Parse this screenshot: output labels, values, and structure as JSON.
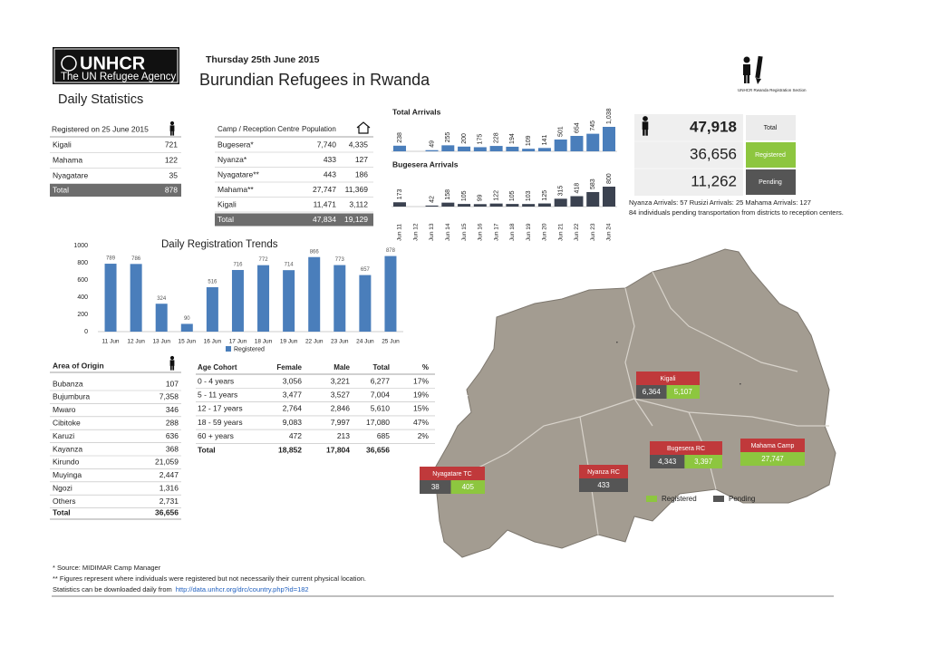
{
  "header": {
    "logo": "UNHCR",
    "logo_sub": "The UN Refugee Agency",
    "date": "Thursday 25th June 2015",
    "title": "Burundian Refugees in Rwanda",
    "subtitle": "Daily Statistics",
    "icon_label": "UNHCR Rwanda Registration Section"
  },
  "registered_table": {
    "title": "Registered on 25 June 2015",
    "rows": [
      [
        "Kigali",
        "721"
      ],
      [
        "Mahama",
        "122"
      ],
      [
        "Nyagatare",
        "35"
      ]
    ],
    "total": [
      "Total",
      "878"
    ]
  },
  "camp_table": {
    "headers": [
      "Camp / Reception Centre",
      "Population"
    ],
    "rows": [
      [
        "Bugesera*",
        "7,740",
        "4,335"
      ],
      [
        "Nyanza*",
        "433",
        "127"
      ],
      [
        "Nyagatare**",
        "443",
        "186"
      ],
      [
        "Mahama**",
        "27,747",
        "11,369"
      ],
      [
        "Kigali",
        "11,471",
        "3,112"
      ],
      [
        "Total",
        "47,834",
        "19,129"
      ]
    ]
  },
  "summary": {
    "rows": [
      {
        "value": "47,918",
        "label": "Total",
        "color": "#ececec"
      },
      {
        "value": "36,656",
        "label": "Registered",
        "color": "#8dc63f"
      },
      {
        "value": "11,262",
        "label": "Pending",
        "color": "#555555"
      }
    ],
    "notes": [
      "Nyanza Arrivals: 57   Rusizi Arrivals: 25   Mahama Arrivals: 127",
      "84 individuals pending transportation from districts to reception centers."
    ]
  },
  "chart_data": [
    {
      "type": "bar",
      "title": "Total Arrivals",
      "color": "#4a7ebb",
      "categories": [
        "Jun 11",
        "Jun 12",
        "Jun 13",
        "Jun 14",
        "Jun 15",
        "Jun 16",
        "Jun 17",
        "Jun 18",
        "Jun 19",
        "Jun 20",
        "Jun 21",
        "Jun 22",
        "Jun 23",
        "Jun 24"
      ],
      "values": [
        238,
        null,
        49,
        255,
        200,
        175,
        228,
        194,
        109,
        141,
        501,
        654,
        745,
        1038
      ],
      "value_labels": [
        "238",
        null,
        "49",
        "255",
        "200",
        "175",
        "228",
        "194",
        "109",
        "141",
        "501",
        "654",
        "745",
        "1,038"
      ]
    },
    {
      "type": "bar",
      "title": "Bugesera Arrivals",
      "color": "#3b4250",
      "values": [
        173,
        null,
        42,
        158,
        105,
        99,
        122,
        105,
        103,
        125,
        315,
        418,
        583,
        800
      ]
    },
    {
      "type": "bar",
      "title": "Daily Registration Trends",
      "categories": [
        "11 Jun",
        "12 Jun",
        "13 Jun",
        "15 Jun",
        "16 Jun",
        "17 Jun",
        "18 Jun",
        "19 Jun",
        "22 Jun",
        "23 Jun",
        "24 Jun",
        "25 Jun"
      ],
      "series": [
        {
          "name": "Registered",
          "color": "#4a7ebb",
          "values": [
            789,
            786,
            324,
            90,
            516,
            716,
            772,
            714,
            866,
            773,
            657,
            878
          ]
        }
      ],
      "ylim": [
        0,
        1000
      ],
      "yticks": [
        0,
        200,
        400,
        600,
        800,
        1000
      ],
      "grid": false
    }
  ],
  "origin_table": {
    "title": "Area of Origin",
    "rows": [
      [
        "Bubanza",
        "107"
      ],
      [
        "Bujumbura",
        "7,358"
      ],
      [
        "Mwaro",
        "346"
      ],
      [
        "Cibitoke",
        "288"
      ],
      [
        "Karuzi",
        "636"
      ],
      [
        "Kayanza",
        "368"
      ],
      [
        "Kirundo",
        "21,059"
      ],
      [
        "Muyinga",
        "2,447"
      ],
      [
        "Ngozi",
        "1,316"
      ],
      [
        "Others",
        "2,731"
      ]
    ],
    "total": [
      "Total",
      "36,656"
    ]
  },
  "age_table": {
    "headers": [
      "Age Cohort",
      "Female",
      "Male",
      "Total",
      "%"
    ],
    "rows": [
      [
        "0 - 4 years",
        "3,056",
        "3,221",
        "6,277",
        "17%"
      ],
      [
        "5 - 11 years",
        "3,477",
        "3,527",
        "7,004",
        "19%"
      ],
      [
        "12 - 17 years",
        "2,764",
        "2,846",
        "5,610",
        "15%"
      ],
      [
        "18 - 59 years",
        "9,083",
        "7,997",
        "17,080",
        "47%"
      ],
      [
        "60 + years",
        "472",
        "213",
        "685",
        "2%"
      ],
      [
        "Total",
        "18,852",
        "17,804",
        "36,656"
      ]
    ]
  },
  "map": {
    "registered_color": "#8dc63f",
    "pending_color": "#555555",
    "label_color": "#c0393b",
    "places": [
      {
        "name": "Kigali",
        "pending": "6,364",
        "registered": "5,107"
      },
      {
        "name": "Bugesera RC",
        "pending": "4,343",
        "registered": "3,397"
      },
      {
        "name": "Mahama Camp",
        "registered": "27,747"
      },
      {
        "name": "Nyanza RC",
        "pending": "433"
      },
      {
        "name": "Nyagatare TC",
        "pending": "38",
        "registered": "405"
      }
    ],
    "legend": [
      "Registered",
      "Pending"
    ]
  },
  "footer": {
    "notes": [
      "* Source: MIDIMAR Camp Manager",
      "** Figures represent where individuals were registered but not necessarily their current physical location.",
      "Statistics can be downloaded daily from"
    ],
    "link": "http://data.unhcr.org/drc/country.php?id=182"
  }
}
